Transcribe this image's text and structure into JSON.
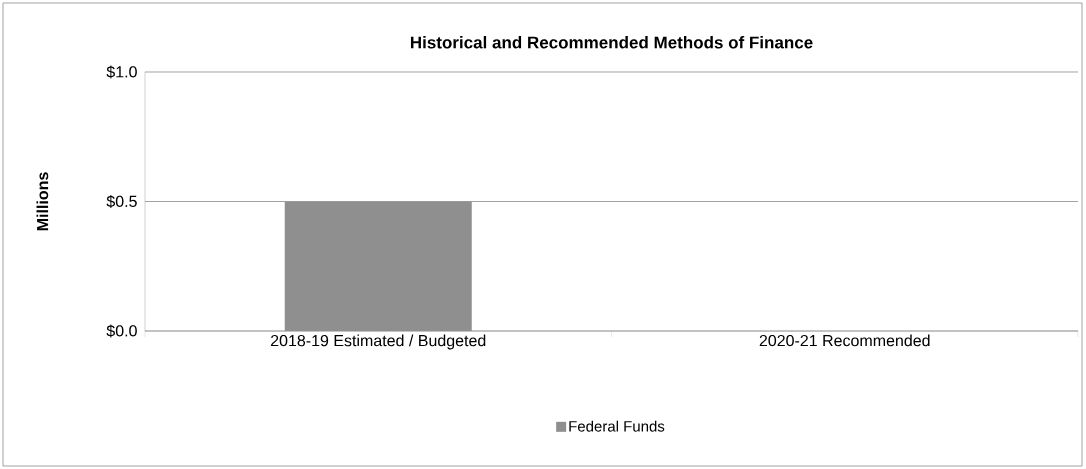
{
  "chart_data": {
    "type": "bar",
    "title": "Historical and Recommended Methods of Finance",
    "ylabel": "Millions",
    "categories": [
      "2018-19 Estimated / Budgeted",
      "2020-21 Recommended"
    ],
    "series": [
      {
        "name": "Federal Funds",
        "color": "#8f8f8f",
        "values": [
          0.5,
          0
        ]
      }
    ],
    "ylim": [
      0,
      1.0
    ],
    "yticks": [
      {
        "value": 0,
        "label": "$0.0"
      },
      {
        "value": 0.5,
        "label": "$0.5"
      },
      {
        "value": 1.0,
        "label": "$1.0"
      }
    ],
    "grid": "y",
    "legend": "bottom"
  }
}
